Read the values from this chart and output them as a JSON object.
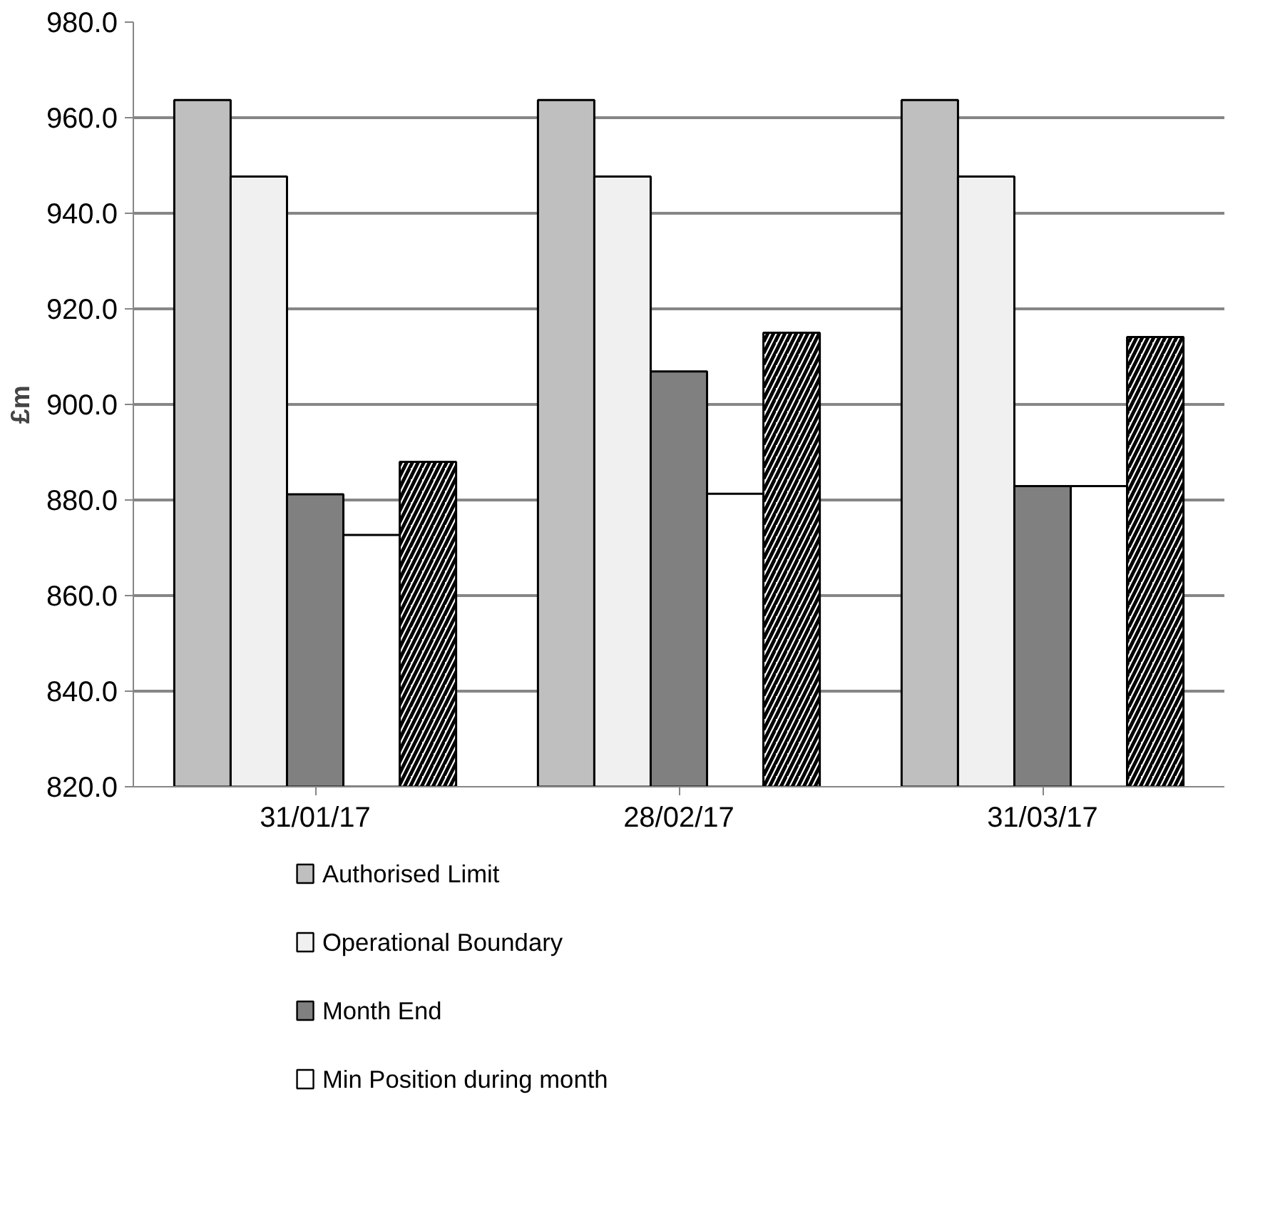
{
  "chart_data": {
    "type": "bar",
    "ylabel": "£m",
    "categories": [
      "31/01/17",
      "28/02/17",
      "31/03/17"
    ],
    "series": [
      {
        "name": "Authorised Limit",
        "color": "#bfbfbf",
        "values": [
          963.7,
          963.7,
          963.7
        ]
      },
      {
        "name": "Operational Boundary",
        "color": "#f0f0f0",
        "values": [
          947.7,
          947.7,
          947.7
        ]
      },
      {
        "name": "Month End",
        "color": "#808080",
        "values": [
          881.2,
          906.9,
          882.9
        ]
      },
      {
        "name": "Min Position during month",
        "color": "#ffffff",
        "values": [
          872.7,
          881.3,
          882.9
        ]
      },
      {
        "color": "#000000",
        "values": [
          888.0,
          915.0,
          914.1
        ]
      }
    ],
    "ylim": [
      820,
      980
    ],
    "yticks": [
      {
        "value": 820,
        "label": "820.0"
      },
      {
        "value": 840,
        "label": "840.0"
      },
      {
        "value": 860,
        "label": "860.0"
      },
      {
        "value": 880,
        "label": "880.0"
      },
      {
        "value": 900,
        "label": "900.0"
      },
      {
        "value": 920,
        "label": "920.0"
      },
      {
        "value": 940,
        "label": "940.0"
      },
      {
        "value": 960,
        "label": "960.0"
      },
      {
        "value": 980,
        "label": "980.0"
      }
    ],
    "grid": "y",
    "legend": "bottom"
  }
}
